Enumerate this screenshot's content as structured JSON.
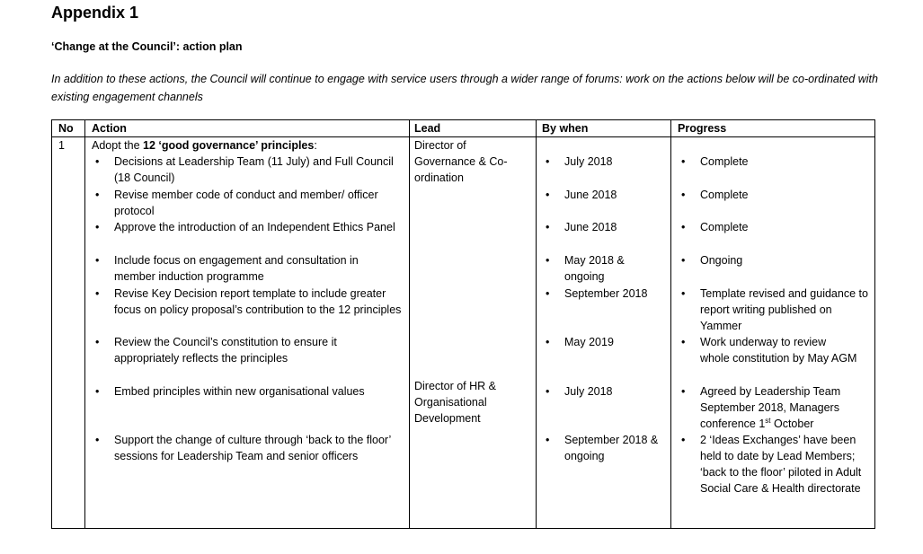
{
  "title": "Appendix 1",
  "subtitle": "‘Change at the Council’: action plan",
  "intro": "In addition to these actions, the Council will continue to engage with service users through a wider range of forums: work on the actions below will be co-ordinated with existing engagement channels",
  "table": {
    "headers": [
      "No",
      "Action",
      "Lead",
      "By when",
      "Progress"
    ],
    "row": {
      "no": "1",
      "action_prefix": "Adopt the ",
      "action_bold": "12 ‘good governance’ principles",
      "action_suffix": ":",
      "leads": [
        "Director of Governance & Co-ordination",
        "Director of HR & Organisational Development"
      ],
      "items": [
        {
          "action": "Decisions at Leadership Team (11 July) and Full Council (18 Council)",
          "by_when": "July 2018",
          "progress": "Complete"
        },
        {
          "action": "Revise member code of conduct and member/ officer protocol",
          "by_when": "June 2018",
          "progress": "Complete"
        },
        {
          "action": "Approve the introduction of an Independent Ethics Panel",
          "by_when": "June 2018",
          "progress": "Complete"
        },
        {
          "action": "Include focus on engagement and consultation in member induction programme",
          "by_when": "May 2018 & ongoing",
          "progress": "Ongoing"
        },
        {
          "action": "Revise Key Decision report template to include greater focus on policy proposal’s contribution to the 12 principles",
          "by_when": "September 2018",
          "progress": "Template revised and guidance to report writing published on Yammer"
        },
        {
          "action": "Review the Council’s constitution to ensure it appropriately reflects the principles",
          "by_when": "May 2019",
          "progress": "Work underway to review whole constitution by May AGM"
        },
        {
          "action": "Embed principles within new organisational values",
          "by_when": "July 2018",
          "progress_pre": "Agreed by Leadership Team September 2018, Managers conference 1",
          "progress_sup": "st",
          "progress_post": " October"
        },
        {
          "action": "Support the change of culture through ‘back to the floor’ sessions for Leadership Team and senior officers",
          "by_when": "September 2018 & ongoing",
          "progress": "2 ‘Ideas Exchanges’ have been held to date by Lead Members; ‘back to the floor’ piloted in Adult Social Care & Health directorate"
        }
      ]
    }
  }
}
